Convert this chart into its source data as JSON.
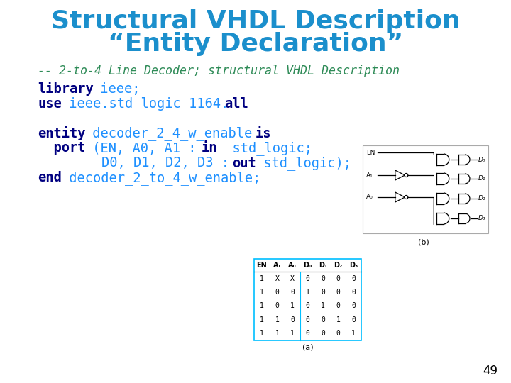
{
  "title_line1": "Structural VHDL Description",
  "title_line2": "“Entity Declaration”",
  "title_color": "#1B8FCC",
  "title_fontsize": 26,
  "bg_color": "#FFFFFF",
  "comment_line": "-- 2-to-4 Line Decoder; structural VHDL Description",
  "comment_color": "#2E8B57",
  "keyword_color": "#000080",
  "code_color": "#1E90FF",
  "body_fontsize": 13.5,
  "comment_fontsize": 12,
  "page_number": "49"
}
